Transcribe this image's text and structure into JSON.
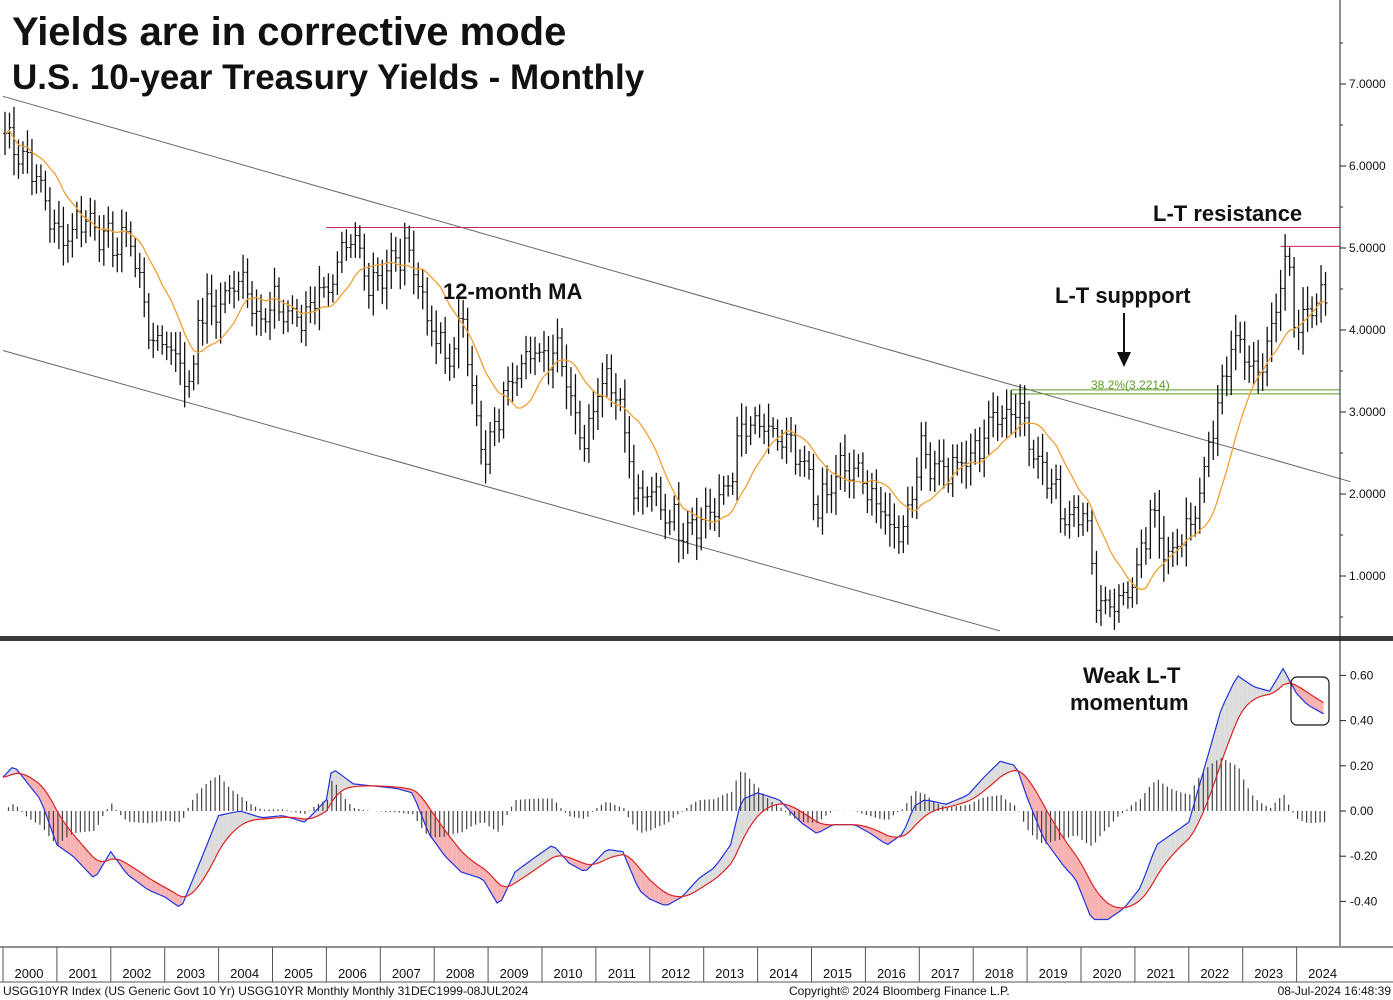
{
  "header": {
    "title": "Yields are in corrective mode",
    "subtitle": "U.S. 10-year Treasury Yields - Monthly"
  },
  "annotations": {
    "ma_label": "12-month MA",
    "resistance": "L-T resistance",
    "support": "L-T suppport",
    "fib": "38.2%(3.2214)",
    "momentum_line1": "Weak L-T",
    "momentum_line2": "momentum"
  },
  "footer": {
    "left": "USGG10YR Index (US Generic Govt 10 Yr) USGG10YR Monthly  Monthly 31DEC1999-08JUL2024",
    "center": "Copyright© 2024 Bloomberg Finance L.P.",
    "right": "08-Jul-2024 16:48:39"
  },
  "colors": {
    "price": "#111111",
    "ma": "#f0a030",
    "resistance": "#cc2266",
    "support": "#5a9a24",
    "macd": "#2233dd",
    "signal": "#dd2222",
    "fill_up": "#dcdcdc",
    "fill_down": "#f7b3b3"
  },
  "chart_data": [
    {
      "type": "ohlc",
      "title": "U.S. 10-year Treasury Yields - Monthly",
      "y_ticks": [
        "1.0000",
        "2.0000",
        "3.0000",
        "4.0000",
        "5.0000",
        "6.0000",
        "7.0000"
      ],
      "ylim": [
        0.3,
        8.0
      ],
      "x_ticks": [
        "2000",
        "2001",
        "2002",
        "2003",
        "2004",
        "2005",
        "2006",
        "2007",
        "2008",
        "2009",
        "2010",
        "2011",
        "2012",
        "2013",
        "2014",
        "2015",
        "2016",
        "2017",
        "2018",
        "2019",
        "2020",
        "2021",
        "2022",
        "2023",
        "2024"
      ],
      "close_anchors": [
        [
          2000.0,
          6.4
        ],
        [
          2000.5,
          6.0
        ],
        [
          2001.0,
          5.1
        ],
        [
          2001.5,
          5.4
        ],
        [
          2002.0,
          5.0
        ],
        [
          2002.3,
          5.2
        ],
        [
          2002.75,
          3.8
        ],
        [
          2003.0,
          3.9
        ],
        [
          2003.45,
          3.3
        ],
        [
          2003.6,
          4.2
        ],
        [
          2004.0,
          4.3
        ],
        [
          2004.4,
          4.7
        ],
        [
          2004.75,
          4.1
        ],
        [
          2005.0,
          4.3
        ],
        [
          2005.5,
          4.1
        ],
        [
          2005.8,
          4.5
        ],
        [
          2006.0,
          4.5
        ],
        [
          2006.45,
          5.1
        ],
        [
          2006.75,
          4.6
        ],
        [
          2007.0,
          4.7
        ],
        [
          2007.5,
          5.0
        ],
        [
          2007.9,
          4.0
        ],
        [
          2008.2,
          3.6
        ],
        [
          2008.5,
          4.1
        ],
        [
          2008.9,
          2.3
        ],
        [
          2009.0,
          2.6
        ],
        [
          2009.45,
          3.6
        ],
        [
          2009.9,
          3.7
        ],
        [
          2010.3,
          3.8
        ],
        [
          2010.7,
          2.6
        ],
        [
          2011.1,
          3.5
        ],
        [
          2011.4,
          3.2
        ],
        [
          2011.7,
          1.9
        ],
        [
          2012.0,
          2.0
        ],
        [
          2012.5,
          1.6
        ],
        [
          2012.9,
          1.7
        ],
        [
          2013.3,
          1.9
        ],
        [
          2013.7,
          2.8
        ],
        [
          2014.0,
          2.8
        ],
        [
          2014.5,
          2.6
        ],
        [
          2014.9,
          2.2
        ],
        [
          2015.1,
          1.8
        ],
        [
          2015.5,
          2.3
        ],
        [
          2015.9,
          2.2
        ],
        [
          2016.4,
          1.6
        ],
        [
          2016.7,
          1.6
        ],
        [
          2016.95,
          2.5
        ],
        [
          2017.5,
          2.3
        ],
        [
          2017.9,
          2.4
        ],
        [
          2018.3,
          2.9
        ],
        [
          2018.8,
          3.1
        ],
        [
          2019.0,
          2.7
        ],
        [
          2019.4,
          2.1
        ],
        [
          2019.7,
          1.7
        ],
        [
          2020.0,
          1.9
        ],
        [
          2020.25,
          0.7
        ],
        [
          2020.6,
          0.65
        ],
        [
          2020.95,
          0.9
        ],
        [
          2021.25,
          1.7
        ],
        [
          2021.6,
          1.3
        ],
        [
          2021.95,
          1.5
        ],
        [
          2022.25,
          2.3
        ],
        [
          2022.5,
          3.0
        ],
        [
          2022.8,
          4.0
        ],
        [
          2023.0,
          3.6
        ],
        [
          2023.3,
          3.5
        ],
        [
          2023.8,
          4.9
        ],
        [
          2023.95,
          3.9
        ],
        [
          2024.2,
          4.4
        ],
        [
          2024.5,
          4.3
        ]
      ],
      "ma_window_months": 12,
      "resistance": {
        "level": 5.25,
        "x_start": 2006.0,
        "x_end": 2025.0
      },
      "recent_high_line": {
        "level": 5.02,
        "x_start": 2023.7,
        "x_end": 2025.0
      },
      "fib_support": {
        "levels": [
          3.2214,
          3.27
        ],
        "x_start": 2018.7,
        "x_end": 2025.0,
        "label": "38.2%(3.2214)"
      },
      "channel_upper": [
        [
          2000.0,
          6.85
        ],
        [
          2025.0,
          2.15
        ]
      ],
      "channel_lower": [
        [
          2000.0,
          3.75
        ],
        [
          2018.5,
          0.33
        ]
      ]
    },
    {
      "type": "macd",
      "y_ticks": [
        "-0.40",
        "-0.20",
        "0.00",
        "0.20",
        "0.40",
        "0.60"
      ],
      "ylim": [
        -0.62,
        0.75
      ],
      "macd_anchors": [
        [
          2000.0,
          0.15
        ],
        [
          2000.2,
          0.2
        ],
        [
          2000.7,
          0.05
        ],
        [
          2001.0,
          -0.15
        ],
        [
          2001.3,
          -0.2
        ],
        [
          2001.7,
          -0.3
        ],
        [
          2002.0,
          -0.18
        ],
        [
          2002.3,
          -0.28
        ],
        [
          2002.7,
          -0.35
        ],
        [
          2003.0,
          -0.38
        ],
        [
          2003.3,
          -0.43
        ],
        [
          2003.7,
          -0.2
        ],
        [
          2004.0,
          -0.02
        ],
        [
          2004.4,
          0.0
        ],
        [
          2004.8,
          -0.03
        ],
        [
          2005.2,
          -0.02
        ],
        [
          2005.6,
          -0.05
        ],
        [
          2006.0,
          0.05
        ],
        [
          2006.1,
          0.19
        ],
        [
          2006.5,
          0.12
        ],
        [
          2006.9,
          0.11
        ],
        [
          2007.3,
          0.1
        ],
        [
          2007.6,
          0.08
        ],
        [
          2007.9,
          -0.1
        ],
        [
          2008.2,
          -0.2
        ],
        [
          2008.5,
          -0.27
        ],
        [
          2008.9,
          -0.3
        ],
        [
          2009.2,
          -0.42
        ],
        [
          2009.5,
          -0.27
        ],
        [
          2009.9,
          -0.2
        ],
        [
          2010.2,
          -0.15
        ],
        [
          2010.5,
          -0.23
        ],
        [
          2010.8,
          -0.27
        ],
        [
          2011.2,
          -0.17
        ],
        [
          2011.5,
          -0.18
        ],
        [
          2011.8,
          -0.35
        ],
        [
          2012.0,
          -0.39
        ],
        [
          2012.3,
          -0.42
        ],
        [
          2012.6,
          -0.38
        ],
        [
          2012.9,
          -0.3
        ],
        [
          2013.2,
          -0.25
        ],
        [
          2013.5,
          -0.15
        ],
        [
          2013.7,
          0.05
        ],
        [
          2014.0,
          0.08
        ],
        [
          2014.4,
          0.05
        ],
        [
          2014.8,
          -0.05
        ],
        [
          2015.1,
          -0.1
        ],
        [
          2015.4,
          -0.06
        ],
        [
          2015.8,
          -0.06
        ],
        [
          2016.1,
          -0.1
        ],
        [
          2016.4,
          -0.15
        ],
        [
          2016.7,
          -0.1
        ],
        [
          2016.9,
          0.02
        ],
        [
          2017.1,
          0.05
        ],
        [
          2017.5,
          0.03
        ],
        [
          2017.9,
          0.07
        ],
        [
          2018.2,
          0.15
        ],
        [
          2018.5,
          0.22
        ],
        [
          2018.8,
          0.2
        ],
        [
          2019.0,
          0.06
        ],
        [
          2019.3,
          -0.12
        ],
        [
          2019.7,
          -0.25
        ],
        [
          2019.9,
          -0.3
        ],
        [
          2020.2,
          -0.48
        ],
        [
          2020.5,
          -0.48
        ],
        [
          2020.8,
          -0.43
        ],
        [
          2021.1,
          -0.34
        ],
        [
          2021.4,
          -0.15
        ],
        [
          2021.7,
          -0.1
        ],
        [
          2022.0,
          -0.05
        ],
        [
          2022.3,
          0.2
        ],
        [
          2022.6,
          0.45
        ],
        [
          2022.9,
          0.6
        ],
        [
          2023.2,
          0.55
        ],
        [
          2023.5,
          0.53
        ],
        [
          2023.75,
          0.63
        ],
        [
          2024.0,
          0.52
        ],
        [
          2024.2,
          0.47
        ],
        [
          2024.5,
          0.43
        ]
      ]
    }
  ]
}
